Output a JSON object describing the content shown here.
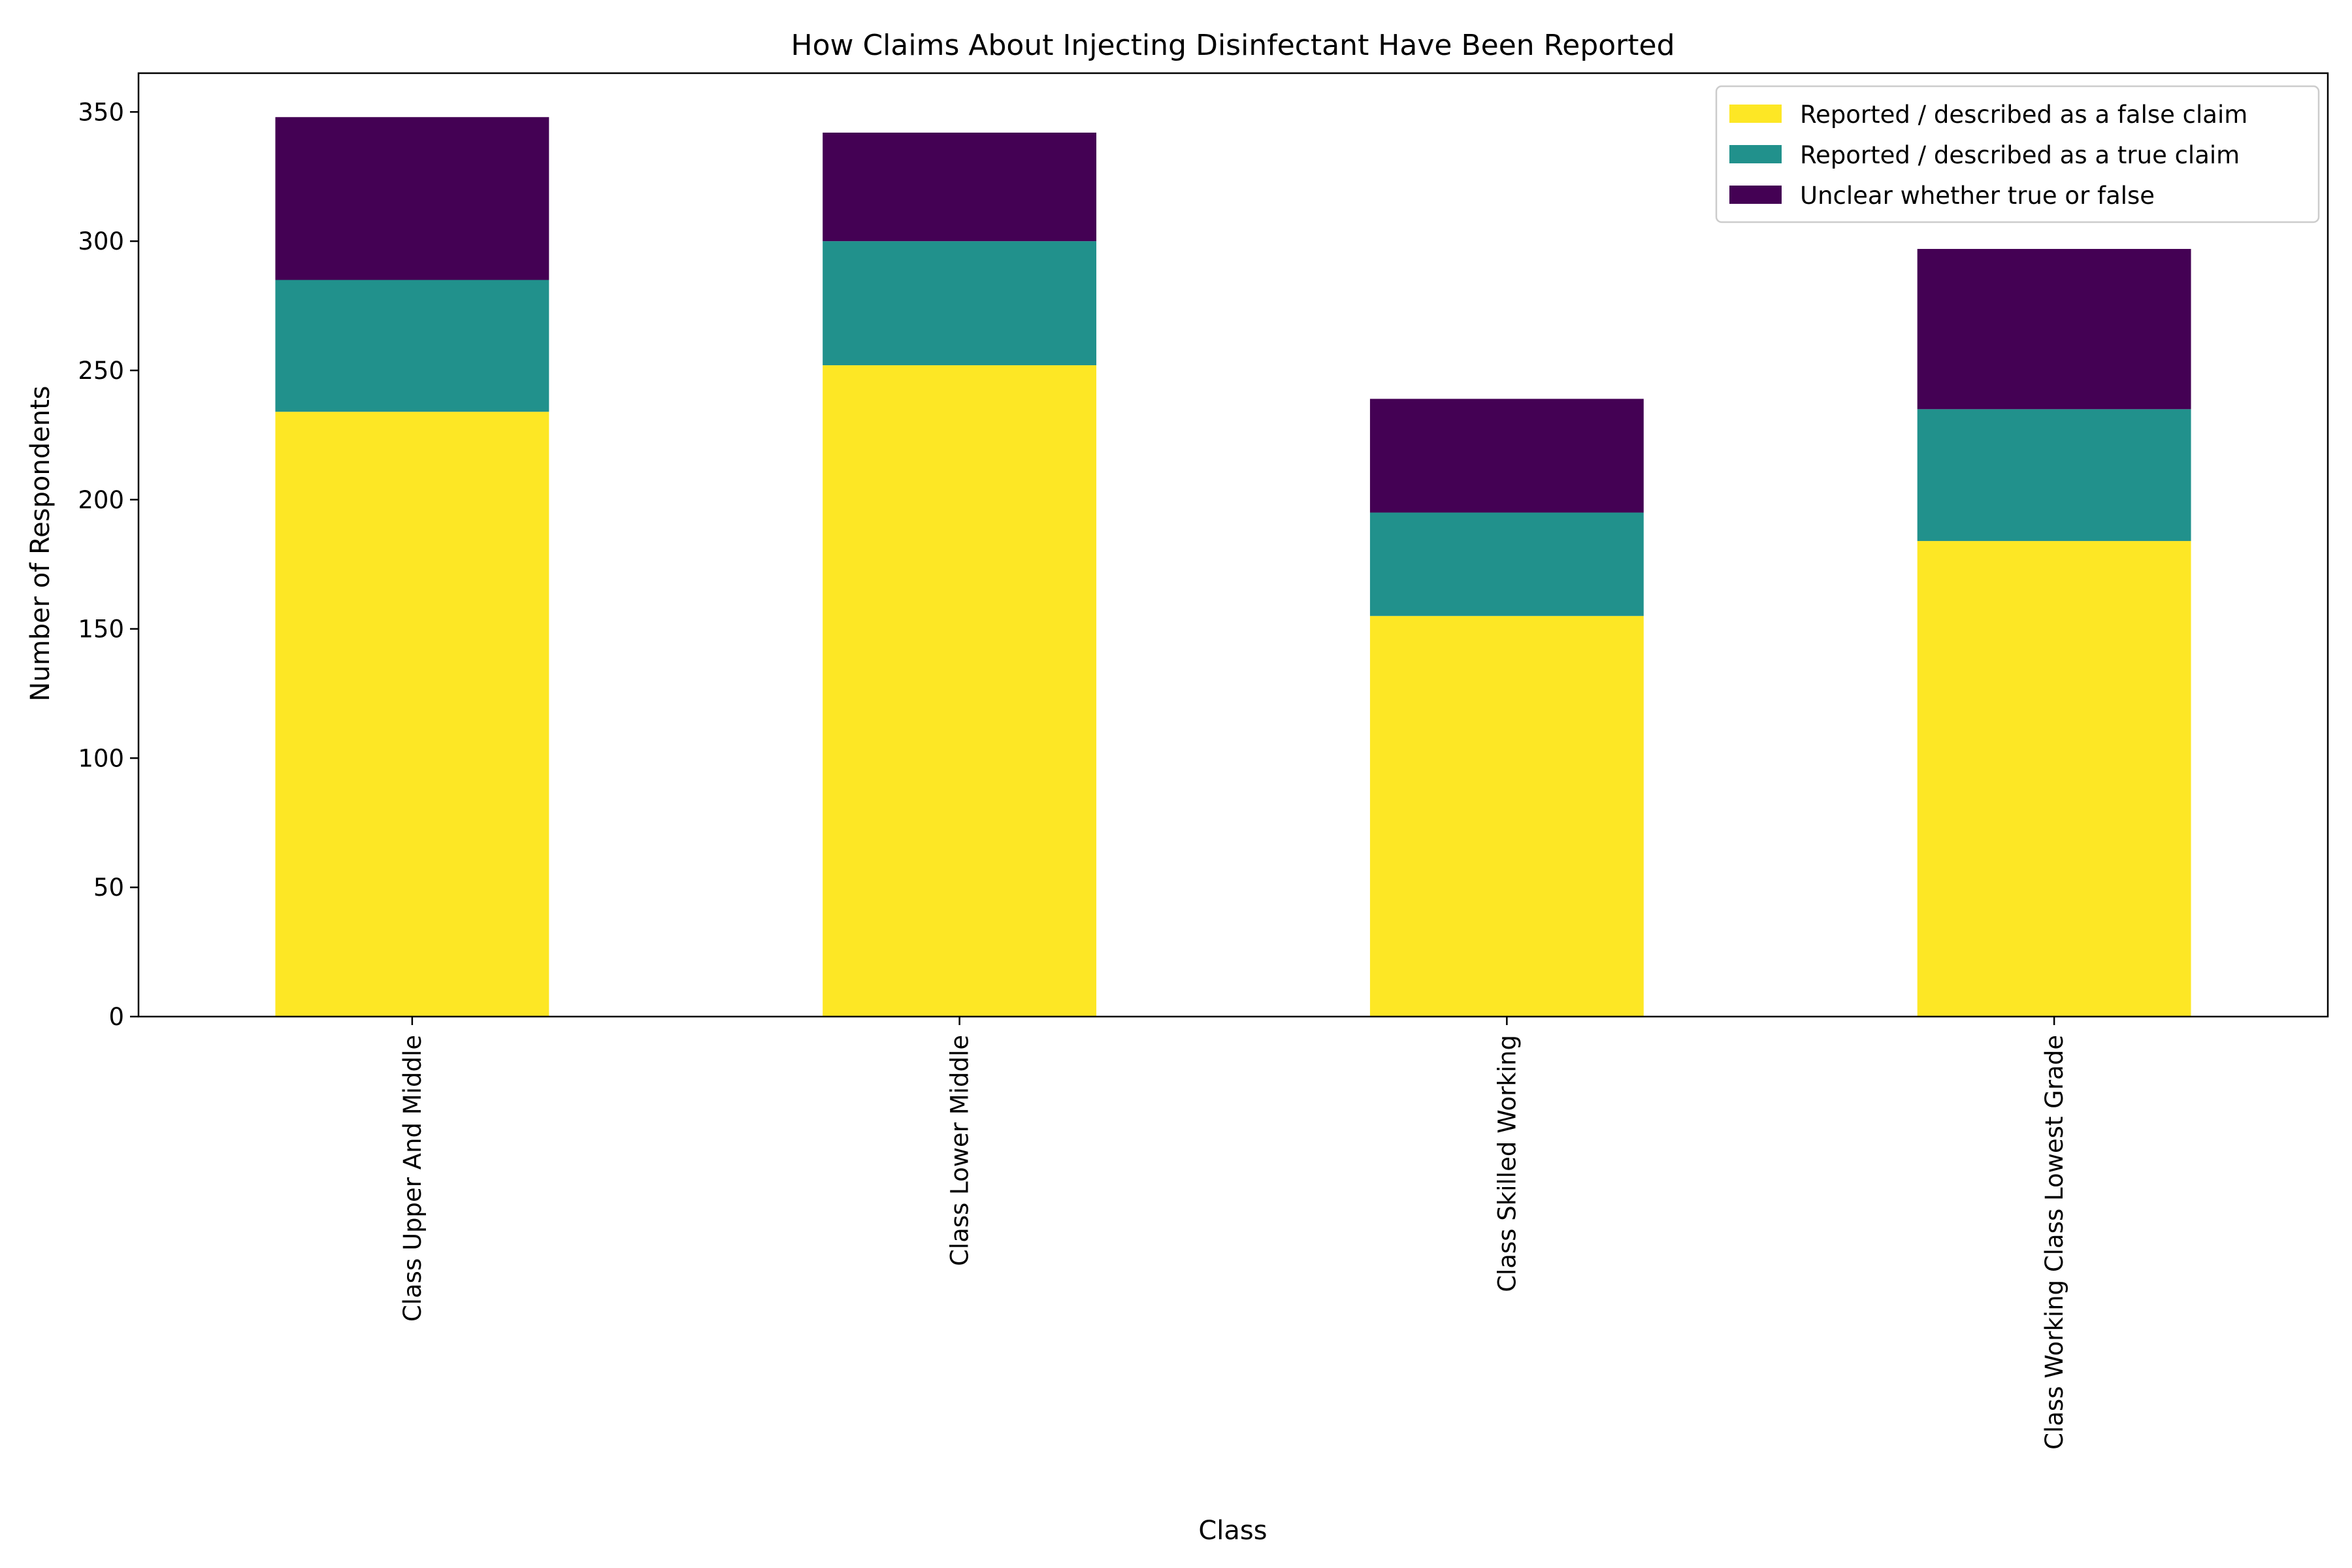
{
  "chart_data": {
    "type": "bar",
    "stacked": true,
    "title": "How Claims About Injecting Disinfectant Have Been Reported",
    "xlabel": "Class",
    "ylabel": "Number of Respondents",
    "categories": [
      "Class Upper And Middle",
      "Class Lower Middle",
      "Class Skilled Working",
      "Class Working Class Lowest Grade"
    ],
    "series": [
      {
        "name": "Reported / described as a false claim",
        "color": "#fde725",
        "values": [
          234,
          252,
          155,
          184
        ]
      },
      {
        "name": "Reported / described as a true claim",
        "color": "#21918c",
        "values": [
          51,
          48,
          40,
          51
        ]
      },
      {
        "name": "Unclear whether true or false",
        "color": "#440154",
        "values": [
          63,
          42,
          44,
          62
        ]
      }
    ],
    "ylim": [
      0,
      365
    ],
    "yticks": [
      0,
      50,
      100,
      150,
      200,
      250,
      300,
      350
    ],
    "grid": false,
    "legend_position": "top-right"
  }
}
